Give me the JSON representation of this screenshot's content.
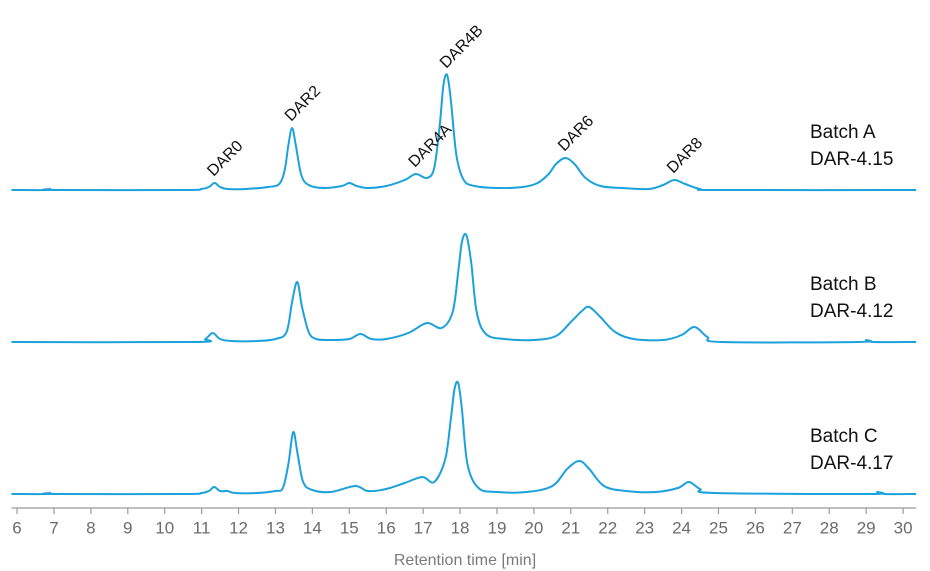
{
  "chart_data": {
    "type": "line",
    "xlabel": "Retention time [min]",
    "xlim": [
      5.85,
      30.35
    ],
    "xticks": [
      6,
      7,
      8,
      9,
      10,
      11,
      12,
      13,
      14,
      15,
      16,
      17,
      18,
      19,
      20,
      21,
      22,
      23,
      24,
      25,
      26,
      27,
      28,
      29,
      30
    ],
    "ylim": [
      0,
      120
    ],
    "series": [
      {
        "name": "Batch A",
        "label": "DAR-4.15",
        "color": "#1ba1dc",
        "x": [
          5.85,
          6.8,
          6.9,
          7.0,
          10.5,
          11.0,
          11.2,
          11.35,
          11.5,
          11.7,
          12.2,
          12.8,
          13.1,
          13.25,
          13.35,
          13.45,
          13.55,
          13.7,
          13.9,
          14.3,
          14.8,
          15.0,
          15.2,
          15.5,
          16.0,
          16.5,
          16.8,
          17.1,
          17.3,
          17.45,
          17.55,
          17.65,
          17.75,
          17.9,
          18.1,
          18.4,
          19.0,
          19.7,
          20.1,
          20.4,
          20.6,
          20.85,
          21.1,
          21.4,
          21.8,
          22.4,
          23.1,
          23.5,
          23.8,
          24.1,
          24.5,
          25.0,
          30.35
        ],
        "values": [
          0,
          0,
          1,
          0,
          0,
          1,
          3,
          7,
          3,
          1,
          1,
          3,
          6,
          20,
          45,
          62,
          45,
          15,
          5,
          2,
          4,
          7,
          4,
          2,
          4,
          10,
          16,
          12,
          22,
          65,
          105,
          115,
          90,
          35,
          10,
          4,
          2,
          3,
          7,
          16,
          26,
          32,
          26,
          12,
          4,
          2,
          1,
          5,
          10,
          6,
          1,
          0,
          0
        ],
        "annotations": [
          {
            "text": "DAR0",
            "x": 11.35,
            "y": 7
          },
          {
            "text": "DAR2",
            "x": 13.45,
            "y": 62
          },
          {
            "text": "DAR4A",
            "x": 16.8,
            "y": 16
          },
          {
            "text": "DAR4B",
            "x": 17.65,
            "y": 115
          },
          {
            "text": "DAR6",
            "x": 20.85,
            "y": 32
          },
          {
            "text": "DAR8",
            "x": 23.8,
            "y": 10
          }
        ]
      },
      {
        "name": "Batch B",
        "label": "DAR-4.12",
        "color": "#1ba1dc",
        "x": [
          5.85,
          10.8,
          11.1,
          11.3,
          11.5,
          11.8,
          12.5,
          13.0,
          13.3,
          13.45,
          13.59,
          13.72,
          13.9,
          14.1,
          14.5,
          15.0,
          15.3,
          15.6,
          16.0,
          16.6,
          17.1,
          17.5,
          17.8,
          17.95,
          18.05,
          18.17,
          18.3,
          18.45,
          18.7,
          19.2,
          20.0,
          20.6,
          21.0,
          21.3,
          21.5,
          21.8,
          22.2,
          22.7,
          23.5,
          24.0,
          24.35,
          24.7,
          25.1,
          28.8,
          29.0,
          29.2,
          30.35
        ],
        "values": [
          0,
          0,
          3,
          9,
          3,
          1,
          1,
          3,
          10,
          40,
          60,
          35,
          10,
          3,
          2,
          3,
          8,
          3,
          3,
          9,
          19,
          14,
          30,
          70,
          100,
          107,
          80,
          30,
          8,
          3,
          2,
          6,
          20,
          31,
          35,
          25,
          10,
          3,
          2,
          7,
          15,
          5,
          0,
          0,
          2,
          0,
          0
        ]
      },
      {
        "name": "Batch C",
        "label": "DAR-4.17",
        "color": "#1ba1dc",
        "x": [
          5.85,
          6.8,
          6.9,
          7.0,
          10.5,
          11.0,
          11.2,
          11.34,
          11.5,
          11.7,
          11.9,
          12.5,
          13.0,
          13.2,
          13.35,
          13.48,
          13.6,
          13.75,
          14.0,
          14.5,
          15.16,
          15.5,
          16.0,
          16.5,
          16.98,
          17.3,
          17.6,
          17.75,
          17.85,
          17.95,
          18.05,
          18.2,
          18.5,
          19.0,
          19.8,
          20.5,
          20.9,
          21.23,
          21.5,
          21.9,
          22.5,
          23.3,
          23.9,
          24.2,
          24.5,
          24.9,
          29.1,
          29.3,
          29.5,
          30.35
        ],
        "values": [
          0,
          0,
          1,
          0,
          0,
          1,
          3,
          7,
          3,
          3,
          1,
          1,
          3,
          6,
          30,
          62,
          40,
          12,
          4,
          2,
          8,
          3,
          5,
          11,
          17,
          12,
          35,
          75,
          105,
          111,
          85,
          30,
          6,
          2,
          2,
          8,
          25,
          33,
          25,
          8,
          3,
          2,
          6,
          12,
          5,
          1,
          0,
          2,
          0,
          0
        ]
      }
    ]
  }
}
